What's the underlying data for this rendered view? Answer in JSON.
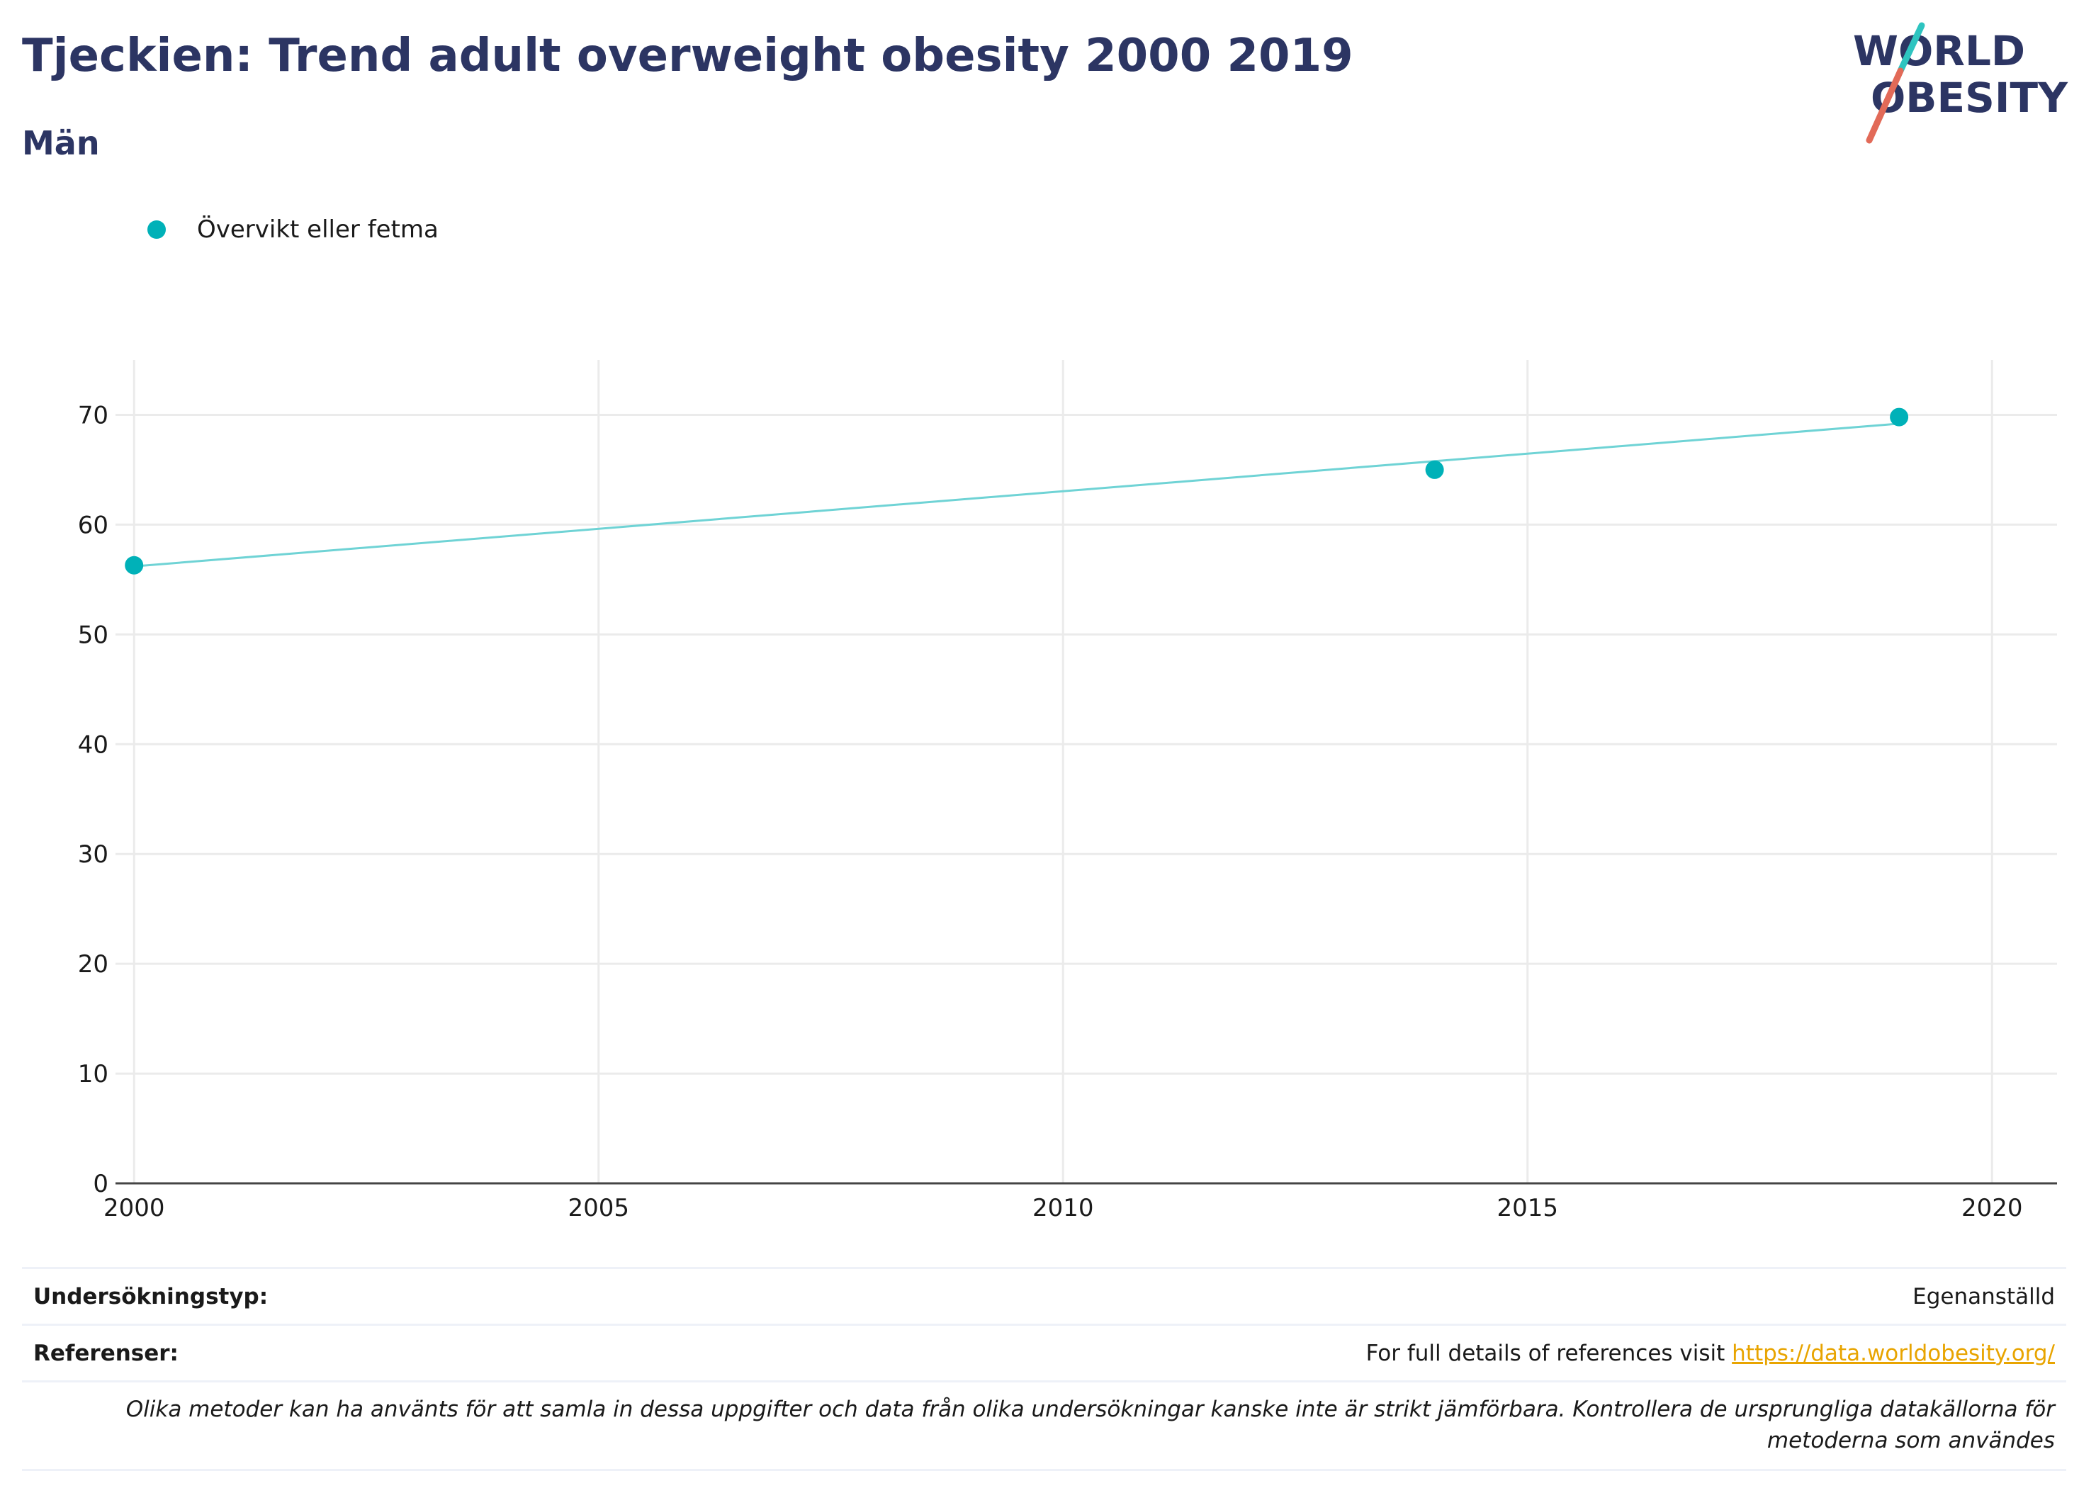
{
  "header": {
    "title": "Tjeckien: Trend adult overweight obesity 2000 2019",
    "subtitle": "Män"
  },
  "logo": {
    "line1": "WORLD",
    "line2": "OBESITY",
    "colors": {
      "text": "#2c3563",
      "slash_top": "#2ec4c0",
      "slash_bottom": "#e26a58"
    }
  },
  "legend": {
    "label": "Övervikt eller fetma",
    "color": "#00b1b8"
  },
  "chart_data": {
    "type": "scatter",
    "title": "Tjeckien: Trend adult overweight obesity 2000 2019",
    "subtitle": "Män",
    "xlabel": "",
    "ylabel": "",
    "xlim": [
      1999.8,
      2020.7
    ],
    "ylim": [
      0,
      75
    ],
    "xticks": [
      2000,
      2005,
      2010,
      2015,
      2020
    ],
    "yticks": [
      0,
      10,
      20,
      30,
      40,
      50,
      60,
      70
    ],
    "grid": true,
    "legend_position": "top-left",
    "series": [
      {
        "name": "Övervikt eller fetma",
        "color": "#00b1b8",
        "x": [
          2000,
          2014,
          2019
        ],
        "y": [
          56.3,
          65.0,
          69.8
        ]
      }
    ],
    "trendline": {
      "color": "#6fd3d5",
      "x": [
        2000,
        2019
      ],
      "y": [
        56.2,
        69.2
      ]
    }
  },
  "footer": {
    "survey_label": "Undersökningstyp:",
    "survey_value": "Egenanställd",
    "references_label": "Referenser:",
    "references_text": "For full details of references visit ",
    "references_link": "https://data.worldobesity.org/",
    "note": "Olika metoder kan ha använts för att samla in dessa uppgifter och data från olika undersökningar kanske inte är strikt jämförbara. Kontrollera de ursprungliga datakällorna för metoderna som användes"
  }
}
